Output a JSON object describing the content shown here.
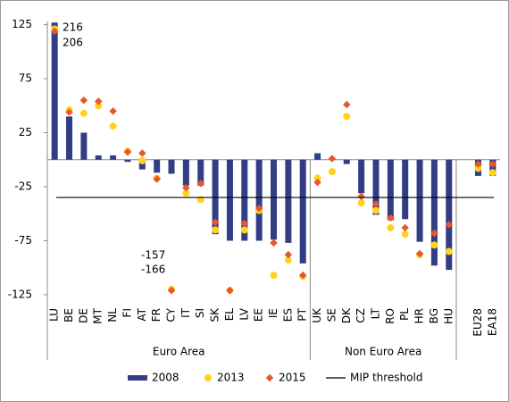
{
  "chart_data": {
    "type": "bar",
    "categories": [
      "LU",
      "BE",
      "DE",
      "MT",
      "NL",
      "FI",
      "AT",
      "FR",
      "CY",
      "IT",
      "SI",
      "SK",
      "EL",
      "LV",
      "EE",
      "IE",
      "ES",
      "PT",
      "UK",
      "SE",
      "DK",
      "CZ",
      "LT",
      "RO",
      "PL",
      "HR",
      "BG",
      "HU",
      null,
      "EU28",
      "EA18"
    ],
    "series": [
      {
        "name": "2008",
        "mark": "bar",
        "color": "#333d84",
        "values": [
          127,
          40,
          25,
          4,
          4,
          -2,
          -9,
          -12,
          -13,
          -24,
          -24,
          -69,
          -75,
          -75,
          -75,
          -74,
          -77,
          -96,
          6,
          1,
          -4,
          -31,
          -51,
          -56,
          -55,
          -76,
          -98,
          -102,
          null,
          -15,
          -15
        ]
      },
      {
        "name": "2013",
        "mark": "circle",
        "color": "#ffd21f",
        "values": [
          121,
          46,
          43,
          50,
          31,
          8,
          -1,
          -17,
          -120,
          -31,
          -37,
          -65,
          -121,
          -65,
          -47,
          -107,
          -93,
          -108,
          -17,
          -11,
          40,
          -40,
          -47,
          -63,
          -69,
          -88,
          -79,
          -85,
          null,
          -8,
          -12
        ]
      },
      {
        "name": "2015",
        "mark": "diamond",
        "color": "#e8572a",
        "values": [
          119,
          44,
          55,
          54,
          45,
          7,
          6,
          -18,
          -121,
          -26,
          -22,
          -58,
          -121,
          -59,
          -45,
          -77,
          -88,
          -107,
          -21,
          1,
          51,
          -34,
          -41,
          -54,
          -63,
          -87,
          -68,
          -60,
          null,
          -4,
          -4
        ]
      },
      {
        "name": "MIP threshold",
        "mark": "threshold",
        "color": "#000000",
        "value": -35
      }
    ],
    "groups": [
      "Euro Area",
      "Non Euro Area"
    ],
    "annotations": [
      "216",
      "206",
      "-157",
      "-166"
    ],
    "ylim": [
      -135,
      128
    ],
    "yticks": [
      125,
      75,
      25,
      -25,
      -75,
      -125
    ]
  }
}
